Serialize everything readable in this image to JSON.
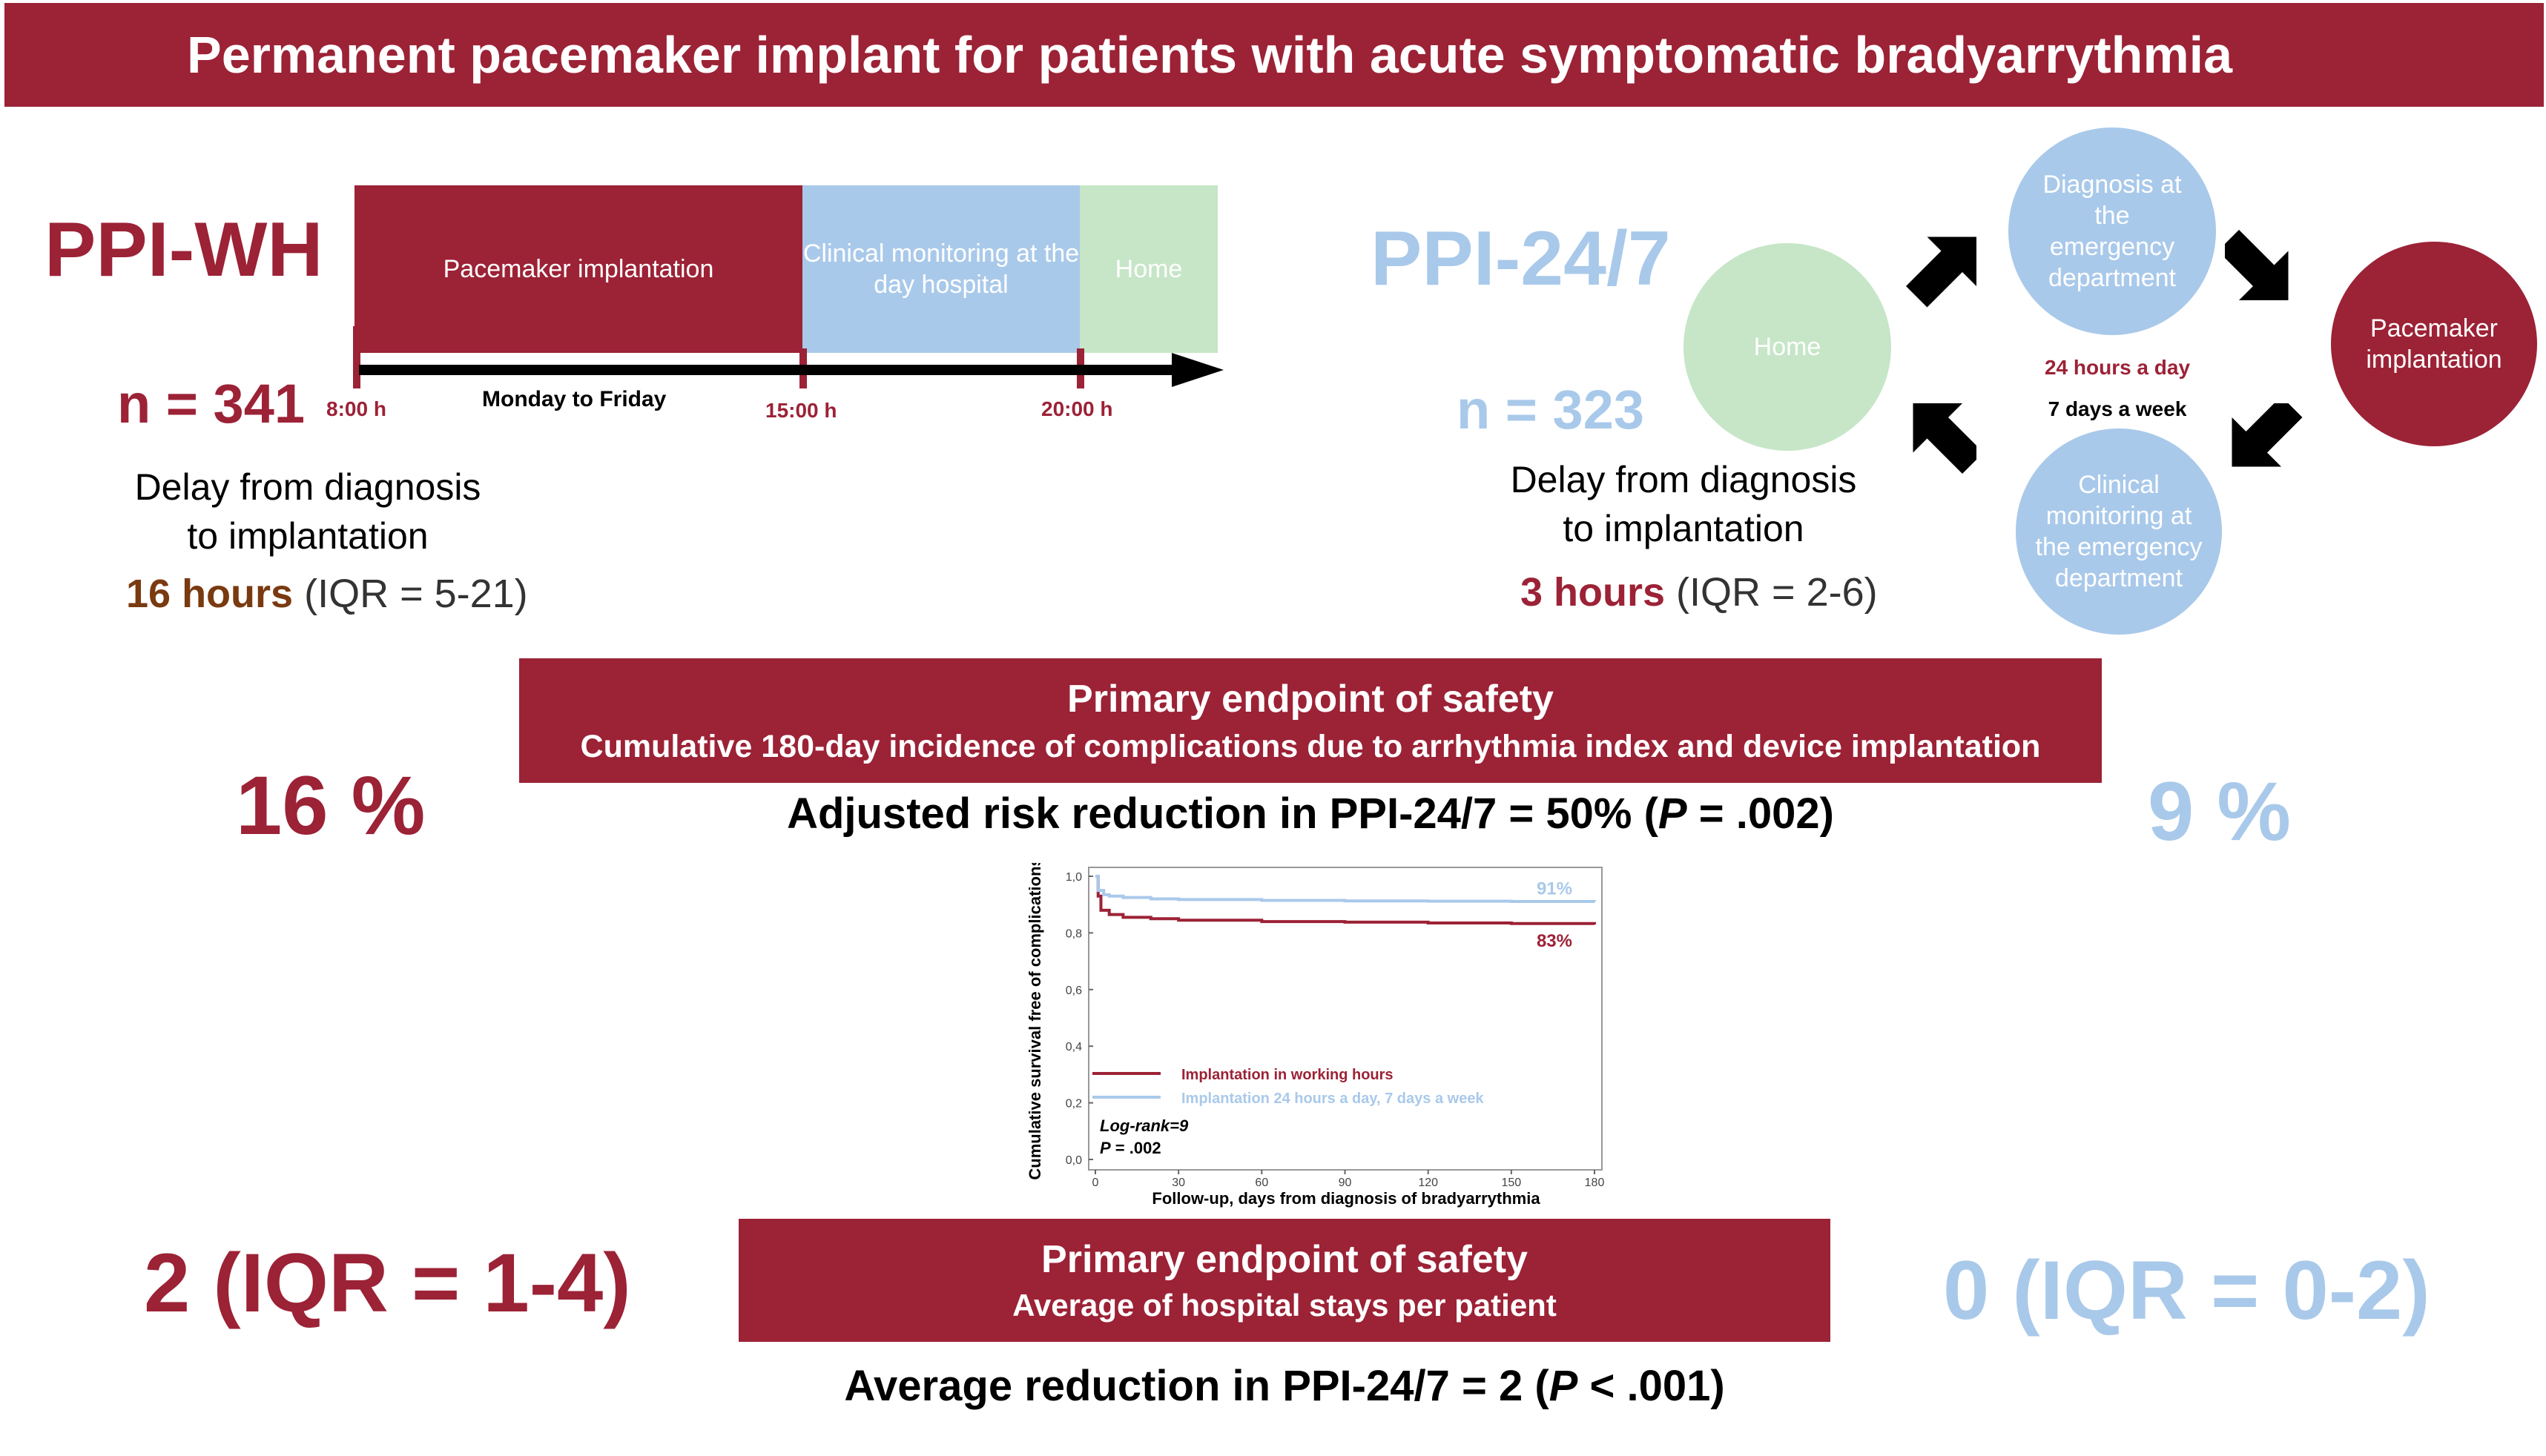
{
  "header": {
    "title": "Permanent pacemaker implant for patients with acute symptomatic bradyarrythmia"
  },
  "wh": {
    "title": "PPI-WH",
    "n": "n = 341",
    "phases": [
      "Pacemaker implantation",
      "Clinical monitoring at the day hospital",
      "Home"
    ],
    "times": [
      "8:00 h",
      "15:00 h",
      "20:00 h"
    ],
    "days": "Monday to Friday",
    "delay_line1": "Delay from diagnosis",
    "delay_line2": "to implantation",
    "delay_value_bold": "16 hours",
    "delay_value_rest": " (IQR = 5-21)"
  },
  "h247": {
    "title": "PPI-24/7",
    "n": "n = 323",
    "delay_line1": "Delay from diagnosis",
    "delay_line2": "to implantation",
    "delay_value_bold": "3 hours",
    "delay_value_rest": " (IQR = 2-6)",
    "cycle": {
      "home": "Home",
      "diagnosis": "Diagnosis at the emergency department",
      "implant": "Pacemaker implantation",
      "monitoring": "Clinical monitoring at the emergency department",
      "hours": "24 hours a day",
      "days": "7 days a week"
    }
  },
  "endpoint1": {
    "title": "Primary endpoint of safety",
    "subtitle": "Cumulative 180-day incidence of complications due to arrhythmia index and device implantation",
    "wh_value": "16 %",
    "h247_value": "9 %",
    "summary_pre": "Adjusted risk reduction in PPI-24/7 = 50% (",
    "summary_p": "P",
    "summary_post": " = .002)"
  },
  "endpoint2": {
    "title": "Primary endpoint of safety",
    "subtitle": "Average of hospital stays per patient",
    "wh_value": "2 (IQR = 1-4)",
    "h247_value": "0 (IQR = 0-2)",
    "summary_pre": "Average reduction in PPI-24/7 = 2 (",
    "summary_p": "P",
    "summary_post": " < .001)"
  },
  "chart_data": {
    "type": "line",
    "title": "",
    "xlabel": "Follow-up, days from diagnosis of bradyarrythmia",
    "ylabel": "Cumulative survival free of complications",
    "xlim": [
      0,
      180
    ],
    "ylim": [
      0,
      1
    ],
    "x_ticks": [
      0,
      30,
      60,
      90,
      120,
      150,
      180
    ],
    "y_ticks": [
      "0,0",
      "0,2",
      "0,4",
      "0,6",
      "0,8",
      "1,0"
    ],
    "series": [
      {
        "name": "Implantation in working hours",
        "color": "#9c2236",
        "x": [
          0,
          1,
          2,
          5,
          10,
          20,
          30,
          60,
          90,
          120,
          150,
          180
        ],
        "y": [
          1.0,
          0.93,
          0.88,
          0.865,
          0.855,
          0.85,
          0.845,
          0.84,
          0.838,
          0.835,
          0.833,
          0.83
        ],
        "end_label": "83%"
      },
      {
        "name": "Implantation 24 hours a day, 7 days a week",
        "color": "#a9c9ea",
        "x": [
          0,
          1,
          3,
          5,
          10,
          20,
          30,
          60,
          90,
          120,
          150,
          180
        ],
        "y": [
          1.0,
          0.95,
          0.935,
          0.93,
          0.925,
          0.92,
          0.918,
          0.915,
          0.913,
          0.912,
          0.911,
          0.91
        ],
        "end_label": "91%"
      }
    ],
    "annotation_line1": "Log-rank=9",
    "annotation_p": "P",
    "annotation_post": " = .002",
    "grid": false
  }
}
